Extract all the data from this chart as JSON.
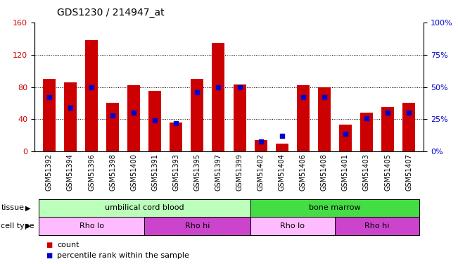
{
  "title": "GDS1230 / 214947_at",
  "samples": [
    "GSM51392",
    "GSM51394",
    "GSM51396",
    "GSM51398",
    "GSM51400",
    "GSM51391",
    "GSM51393",
    "GSM51395",
    "GSM51397",
    "GSM51399",
    "GSM51402",
    "GSM51404",
    "GSM51406",
    "GSM51408",
    "GSM51401",
    "GSM51403",
    "GSM51405",
    "GSM51407"
  ],
  "counts": [
    90,
    86,
    138,
    60,
    82,
    75,
    36,
    90,
    135,
    83,
    14,
    10,
    82,
    80,
    33,
    48,
    55,
    60
  ],
  "percentiles": [
    42,
    34,
    50,
    28,
    30,
    24,
    22,
    46,
    50,
    50,
    8,
    12,
    42,
    42,
    14,
    26,
    30,
    30
  ],
  "ylim_left": [
    0,
    160
  ],
  "ylim_right": [
    0,
    100
  ],
  "yticks_left": [
    0,
    40,
    80,
    120,
    160
  ],
  "yticks_right": [
    0,
    25,
    50,
    75,
    100
  ],
  "bar_color": "#cc0000",
  "dot_color": "#0000cc",
  "tissue_groups": [
    {
      "label": "umbilical cord blood",
      "start": 0,
      "end": 9,
      "color": "#bbffbb"
    },
    {
      "label": "bone marrow",
      "start": 10,
      "end": 17,
      "color": "#44dd44"
    }
  ],
  "cell_type_groups": [
    {
      "label": "Rho lo",
      "start": 0,
      "end": 4,
      "color": "#ffbbff"
    },
    {
      "label": "Rho hi",
      "start": 5,
      "end": 9,
      "color": "#cc44cc"
    },
    {
      "label": "Rho lo",
      "start": 10,
      "end": 13,
      "color": "#ffbbff"
    },
    {
      "label": "Rho hi",
      "start": 14,
      "end": 17,
      "color": "#cc44cc"
    }
  ],
  "legend_count_color": "#cc0000",
  "legend_dot_color": "#0000cc",
  "bg_color": "#ffffff",
  "plot_bg": "#ffffff",
  "tick_label_color_left": "#cc0000",
  "tick_label_color_right": "#0000cc",
  "grid_yticks": [
    40,
    80,
    120
  ]
}
